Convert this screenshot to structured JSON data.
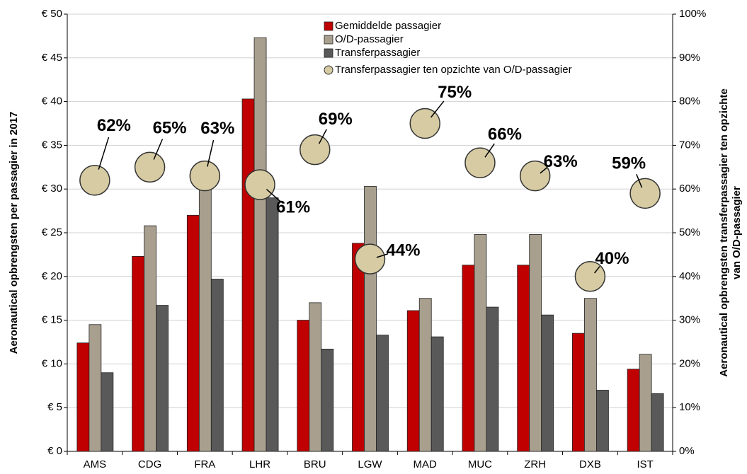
{
  "chart_data": {
    "type": "bar",
    "ylabel": "Aeronautical opbrengsten per passagier in 2017",
    "y2label": [
      "Aeronautical opbrengsten transferpassagier ten opzichte",
      "van O/D-passagier"
    ],
    "categories": [
      "AMS",
      "CDG",
      "FRA",
      "LHR",
      "BRU",
      "LGW",
      "MAD",
      "MUC",
      "ZRH",
      "DXB",
      "IST"
    ],
    "series": [
      {
        "name": "Gemiddelde passagier",
        "color": "#c00000",
        "values": [
          12.4,
          22.3,
          27.0,
          40.3,
          15.0,
          23.8,
          16.1,
          21.3,
          21.3,
          13.5,
          9.4
        ]
      },
      {
        "name": "O/D-passagier",
        "color": "#a89f8e",
        "values": [
          14.5,
          25.8,
          31.0,
          47.3,
          17.0,
          30.3,
          17.5,
          24.8,
          24.8,
          17.5,
          11.1
        ]
      },
      {
        "name": "Transferpassagier",
        "color": "#595959",
        "values": [
          9.0,
          16.7,
          19.7,
          29.0,
          11.7,
          13.3,
          13.1,
          16.5,
          15.6,
          7.0,
          6.6
        ]
      },
      {
        "name": "Transferpassagier ten opzichte van O/D-passagier",
        "type": "bubble",
        "axis": "y2",
        "color": "#d6cba3",
        "values": [
          62,
          65,
          63,
          61,
          69,
          44,
          75,
          66,
          63,
          40,
          59
        ],
        "value_labels": [
          "62%",
          "65%",
          "63%",
          "61%",
          "69%",
          "44%",
          "75%",
          "66%",
          "63%",
          "40%",
          "59%"
        ]
      }
    ],
    "ylim": [
      0,
      50
    ],
    "yticks": [
      {
        "value": 0,
        "label": "€ 0"
      },
      {
        "value": 5,
        "label": "€ 5"
      },
      {
        "value": 10,
        "label": "€ 10"
      },
      {
        "value": 15,
        "label": "€ 15"
      },
      {
        "value": 20,
        "label": "€ 20"
      },
      {
        "value": 25,
        "label": "€ 25"
      },
      {
        "value": 30,
        "label": "€ 30"
      },
      {
        "value": 35,
        "label": "€ 35"
      },
      {
        "value": 40,
        "label": "€ 40"
      },
      {
        "value": 45,
        "label": "€ 45"
      },
      {
        "value": 50,
        "label": "€ 50"
      }
    ],
    "y2lim": [
      0,
      100
    ],
    "y2ticks": [
      {
        "value": 0,
        "label": "0%"
      },
      {
        "value": 10,
        "label": "10%"
      },
      {
        "value": 20,
        "label": "20%"
      },
      {
        "value": 30,
        "label": "30%"
      },
      {
        "value": 40,
        "label": "40%"
      },
      {
        "value": 50,
        "label": "50%"
      },
      {
        "value": 60,
        "label": "60%"
      },
      {
        "value": 70,
        "label": "70%"
      },
      {
        "value": 80,
        "label": "80%"
      },
      {
        "value": 90,
        "label": "90%"
      },
      {
        "value": 100,
        "label": "100%"
      }
    ],
    "grid": true
  }
}
